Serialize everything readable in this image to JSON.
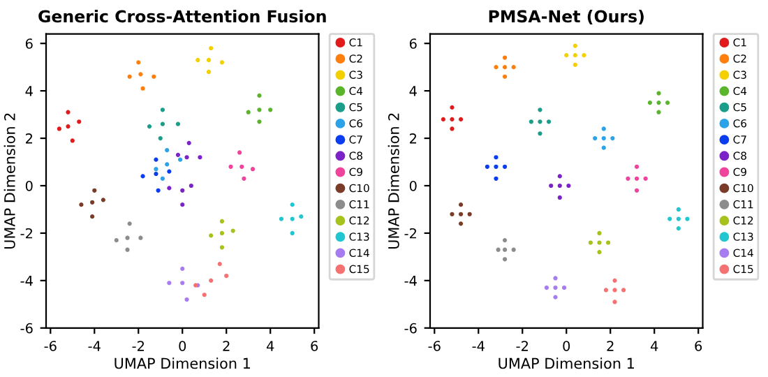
{
  "chart_data": [
    {
      "type": "scatter",
      "title": "Generic Cross-Attention Fusion",
      "xlabel": "UMAP Dimension 1",
      "ylabel": "UMAP Dimension 2",
      "xlim": [
        -6.2,
        6.2
      ],
      "ylim": [
        -6,
        6.4
      ],
      "xticks": [
        -6,
        -4,
        -2,
        0,
        2,
        4,
        6
      ],
      "yticks": [
        -6,
        -4,
        -2,
        0,
        2,
        4,
        6
      ],
      "grid": false,
      "legend": "right",
      "marker": "circle",
      "series": [
        {
          "name": "C1",
          "color": "#e31a1c",
          "x": [
            -5.2,
            -5.6,
            -4.7,
            -5.2,
            -5.0
          ],
          "values": [
            2.5,
            2.4,
            2.7,
            3.1,
            1.9
          ]
        },
        {
          "name": "C2",
          "color": "#ff7f0e",
          "x": [
            -1.9,
            -2.4,
            -1.3,
            -2.0,
            -1.8
          ],
          "values": [
            4.7,
            4.6,
            4.6,
            5.2,
            4.1
          ]
        },
        {
          "name": "C3",
          "color": "#f5d000",
          "x": [
            1.2,
            0.7,
            1.8,
            1.3,
            1.2
          ],
          "values": [
            5.3,
            5.3,
            5.2,
            5.8,
            4.8
          ]
        },
        {
          "name": "C4",
          "color": "#5ab52b",
          "x": [
            3.5,
            3.0,
            4.0,
            3.5,
            3.5
          ],
          "values": [
            3.2,
            3.1,
            3.2,
            3.8,
            2.7
          ]
        },
        {
          "name": "C5",
          "color": "#1a9e8a",
          "x": [
            -0.9,
            -1.5,
            -0.2,
            -0.9,
            -1.0
          ],
          "values": [
            2.6,
            2.5,
            2.6,
            3.2,
            2.0
          ]
        },
        {
          "name": "C6",
          "color": "#2ca3e8",
          "x": [
            -0.7,
            -1.2,
            -0.1,
            -0.7,
            -0.9
          ],
          "values": [
            0.9,
            0.7,
            1.1,
            1.5,
            0.3
          ]
        },
        {
          "name": "C7",
          "color": "#0b3df0",
          "x": [
            -1.2,
            -1.8,
            -0.6,
            -1.2,
            -1.1
          ],
          "values": [
            0.5,
            0.4,
            0.6,
            1.1,
            -0.2
          ]
        },
        {
          "name": "C8",
          "color": "#7b22c8",
          "x": [
            0.2,
            -0.2,
            0.8,
            0.3,
            0.0,
            -0.6,
            0.4,
            0.0
          ],
          "values": [
            1.2,
            1.3,
            1.2,
            1.8,
            -0.2,
            -0.1,
            0.0,
            -0.8
          ]
        },
        {
          "name": "C9",
          "color": "#f0449c",
          "x": [
            2.7,
            2.2,
            3.2,
            2.6,
            2.8
          ],
          "values": [
            0.8,
            0.8,
            0.7,
            1.4,
            0.3
          ]
        },
        {
          "name": "C10",
          "color": "#7a3b28",
          "x": [
            -4.1,
            -4.6,
            -3.6,
            -4.0,
            -4.1
          ],
          "values": [
            -0.7,
            -0.8,
            -0.6,
            -0.2,
            -1.3
          ]
        },
        {
          "name": "C11",
          "color": "#8c8c8c",
          "x": [
            -2.5,
            -3.0,
            -1.9,
            -2.4,
            -2.5
          ],
          "values": [
            -2.2,
            -2.3,
            -2.2,
            -1.6,
            -2.7
          ]
        },
        {
          "name": "C12",
          "color": "#a6c21c",
          "x": [
            1.8,
            1.3,
            2.3,
            1.8,
            1.8
          ],
          "values": [
            -2.0,
            -2.1,
            -1.9,
            -1.5,
            -2.6
          ]
        },
        {
          "name": "C13",
          "color": "#22c6d0",
          "x": [
            5.0,
            4.5,
            5.4,
            5.0,
            5.0
          ],
          "values": [
            -1.4,
            -1.4,
            -1.3,
            -0.8,
            -2.0
          ]
        },
        {
          "name": "C14",
          "color": "#a77cf0",
          "x": [
            0.0,
            -0.6,
            0.7,
            0.0,
            0.2
          ],
          "values": [
            -4.1,
            -4.1,
            -4.2,
            -3.5,
            -4.8
          ]
        },
        {
          "name": "C15",
          "color": "#f57272",
          "x": [
            1.3,
            0.6,
            2.0,
            1.7,
            1.0
          ],
          "values": [
            -4.0,
            -4.2,
            -3.8,
            -3.3,
            -4.6
          ]
        }
      ]
    },
    {
      "type": "scatter",
      "title": "PMSA-Net (Ours)",
      "xlabel": "UMAP Dimension 1",
      "ylabel": "UMAP Dimension 2",
      "xlim": [
        -6.2,
        6.2
      ],
      "ylim": [
        -6,
        6.4
      ],
      "xticks": [
        -6,
        -4,
        -2,
        0,
        2,
        4,
        6
      ],
      "yticks": [
        -6,
        -4,
        -2,
        0,
        2,
        4,
        6
      ],
      "grid": false,
      "legend": "right",
      "marker": "circle",
      "series": [
        {
          "name": "C1",
          "color": "#e31a1c",
          "x": [
            -5.2,
            -5.6,
            -4.8,
            -5.2,
            -5.2
          ],
          "values": [
            2.8,
            2.8,
            2.8,
            3.3,
            2.4
          ]
        },
        {
          "name": "C2",
          "color": "#ff7f0e",
          "x": [
            -2.8,
            -3.2,
            -2.4,
            -2.8,
            -2.8
          ],
          "values": [
            5.0,
            5.0,
            5.0,
            5.4,
            4.6
          ]
        },
        {
          "name": "C3",
          "color": "#f5d000",
          "x": [
            0.4,
            0.0,
            0.8,
            0.4,
            0.4
          ],
          "values": [
            5.5,
            5.5,
            5.5,
            5.9,
            5.1
          ]
        },
        {
          "name": "C4",
          "color": "#5ab52b",
          "x": [
            4.2,
            3.8,
            4.6,
            4.2,
            4.2
          ],
          "values": [
            3.5,
            3.5,
            3.5,
            3.9,
            3.1
          ]
        },
        {
          "name": "C5",
          "color": "#1a9e8a",
          "x": [
            -1.2,
            -1.6,
            -0.8,
            -1.2,
            -1.2
          ],
          "values": [
            2.7,
            2.7,
            2.7,
            3.2,
            2.2
          ]
        },
        {
          "name": "C6",
          "color": "#2ca3e8",
          "x": [
            1.7,
            1.3,
            2.1,
            1.7,
            1.7
          ],
          "values": [
            2.0,
            2.0,
            2.0,
            2.4,
            1.6
          ]
        },
        {
          "name": "C7",
          "color": "#0b3df0",
          "x": [
            -3.2,
            -3.6,
            -2.8,
            -3.2,
            -3.2
          ],
          "values": [
            0.8,
            0.8,
            0.8,
            1.2,
            0.3
          ]
        },
        {
          "name": "C8",
          "color": "#7b22c8",
          "x": [
            -0.3,
            -0.7,
            0.1,
            -0.3,
            -0.3
          ],
          "values": [
            0.0,
            0.0,
            0.0,
            0.4,
            -0.5
          ]
        },
        {
          "name": "C9",
          "color": "#f0449c",
          "x": [
            3.2,
            2.8,
            3.6,
            3.2,
            3.2
          ],
          "values": [
            0.3,
            0.3,
            0.3,
            0.8,
            -0.2
          ]
        },
        {
          "name": "C10",
          "color": "#7a3b28",
          "x": [
            -4.8,
            -5.2,
            -4.4,
            -4.8,
            -4.8
          ],
          "values": [
            -1.2,
            -1.2,
            -1.2,
            -0.8,
            -1.6
          ]
        },
        {
          "name": "C11",
          "color": "#8c8c8c",
          "x": [
            -2.8,
            -3.1,
            -2.4,
            -2.8,
            -2.8
          ],
          "values": [
            -2.7,
            -2.7,
            -2.7,
            -2.3,
            -3.1
          ]
        },
        {
          "name": "C12",
          "color": "#a6c21c",
          "x": [
            1.5,
            1.1,
            1.9,
            1.5,
            1.5
          ],
          "values": [
            -2.4,
            -2.4,
            -2.4,
            -2.0,
            -2.8
          ]
        },
        {
          "name": "C13",
          "color": "#22c6d0",
          "x": [
            5.1,
            4.7,
            5.5,
            5.1,
            5.1
          ],
          "values": [
            -1.4,
            -1.4,
            -1.4,
            -1.0,
            -1.8
          ]
        },
        {
          "name": "C14",
          "color": "#a77cf0",
          "x": [
            -0.5,
            -0.9,
            -0.1,
            -0.5,
            -0.5
          ],
          "values": [
            -4.3,
            -4.3,
            -4.3,
            -3.9,
            -4.7
          ]
        },
        {
          "name": "C15",
          "color": "#f57272",
          "x": [
            2.2,
            1.8,
            2.6,
            2.2,
            2.2
          ],
          "values": [
            -4.4,
            -4.4,
            -4.4,
            -4.0,
            -4.9
          ]
        }
      ]
    }
  ]
}
